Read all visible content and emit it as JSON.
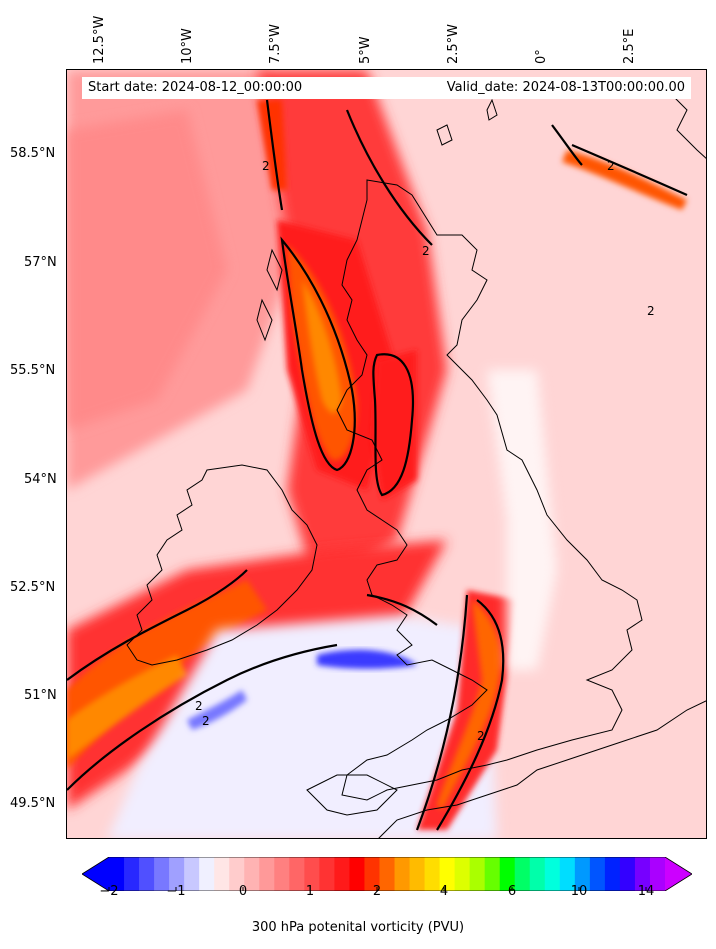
{
  "map": {
    "start_date_text": "Start date: 2024-08-12_00:00:00",
    "valid_date_text": "Valid_date: 2024-08-13T00:00:00.00",
    "lon_labels": [
      "12.5°W",
      "10°W",
      "7.5°W",
      "5°W",
      "2.5°W",
      "0°",
      "2.5°E"
    ],
    "lat_labels": [
      "58.5°N",
      "57°N",
      "55.5°N",
      "54°N",
      "52.5°N",
      "51°N",
      "49.5°N"
    ],
    "contour_label": "2",
    "colors": {
      "frame_background": "#ffe9e9",
      "coastline": "#000000",
      "pv_contour": "#000000"
    }
  },
  "colorbar": {
    "title": "300 hPa potenital vorticity (PVU)",
    "tick_labels": [
      "−2",
      "−1",
      "0",
      "1",
      "2",
      "4",
      "6",
      "10",
      "14"
    ],
    "extend": "both",
    "colors": [
      "#0000ff",
      "#2828ff",
      "#5050ff",
      "#7878ff",
      "#a0a0ff",
      "#c8c8ff",
      "#f0f0ff",
      "#ffe6e6",
      "#ffcccc",
      "#ffb3b3",
      "#ff9999",
      "#ff8080",
      "#ff6666",
      "#ff4d4d",
      "#ff3333",
      "#ff1a1a",
      "#ff0000",
      "#ff3300",
      "#ff6600",
      "#ff9900",
      "#ffbb00",
      "#ffdd00",
      "#ffff00",
      "#ddff00",
      "#aaff00",
      "#66ff00",
      "#00ff00",
      "#00ff66",
      "#00ffaa",
      "#00ffdd",
      "#00ddff",
      "#0099ff",
      "#0055ff",
      "#0022ff",
      "#3300ff",
      "#7700ff",
      "#aa00ff"
    ],
    "over_color": "#cc00ff",
    "under_color": "#0000ff"
  }
}
